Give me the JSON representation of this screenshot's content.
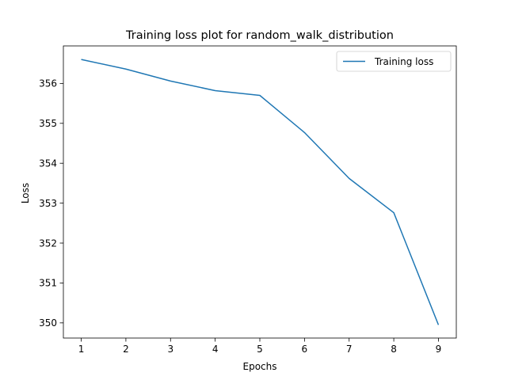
{
  "chart_data": {
    "type": "line",
    "title": "Training loss plot for random_walk_distribution",
    "xlabel": "Epochs",
    "ylabel": "Loss",
    "x": [
      1,
      2,
      3,
      4,
      5,
      6,
      7,
      8,
      9
    ],
    "xticks": [
      1,
      2,
      3,
      4,
      5,
      6,
      7,
      8,
      9
    ],
    "yticks": [
      350,
      351,
      352,
      353,
      354,
      355,
      356
    ],
    "xlim": [
      0.6,
      9.4
    ],
    "ylim": [
      349.62,
      356.94
    ],
    "grid": false,
    "legend_position": "top-right",
    "series": [
      {
        "name": "Training loss",
        "color": "#1f77b4",
        "values": [
          356.6,
          356.36,
          356.06,
          355.82,
          355.7,
          354.77,
          353.62,
          352.76,
          349.95
        ]
      }
    ]
  }
}
